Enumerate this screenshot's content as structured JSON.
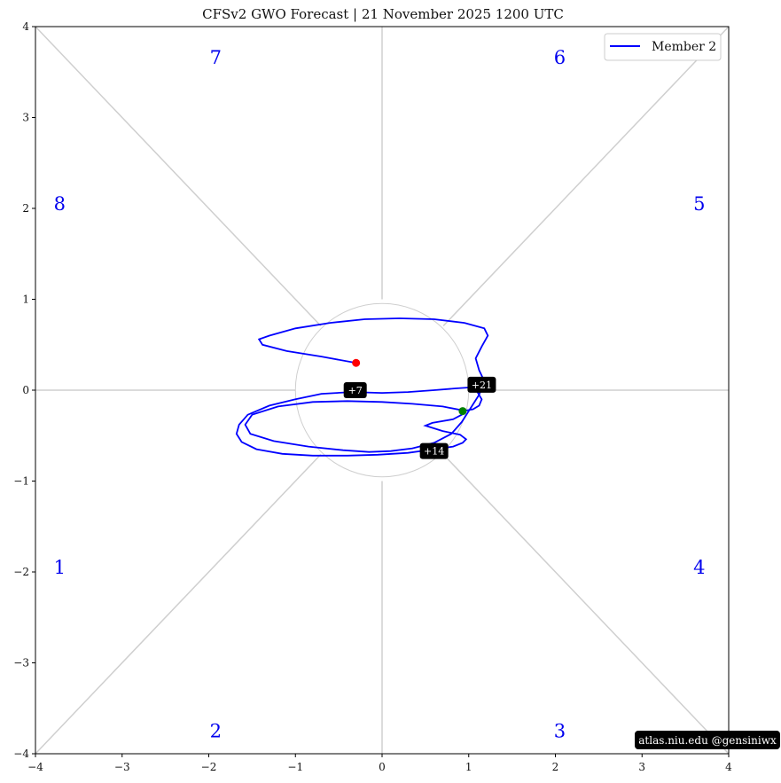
{
  "chart_data": {
    "type": "line",
    "title": "CFSv2 GWO Forecast   |   21  November  2025 1200 UTC",
    "xlim": [
      -4,
      4
    ],
    "ylim": [
      -4,
      4
    ],
    "x_ticks": [
      -4,
      -3,
      -2,
      -1,
      0,
      1,
      2,
      3,
      4
    ],
    "y_ticks": [
      -4,
      -3,
      -2,
      -1,
      0,
      1,
      2,
      3,
      4
    ],
    "x_tick_labels": [
      "−4",
      "−3",
      "−2",
      "−1",
      "0",
      "1",
      "2",
      "3",
      "4"
    ],
    "y_tick_labels": [
      "−4",
      "−3",
      "−2",
      "−1",
      "0",
      "1",
      "2",
      "3",
      "4"
    ],
    "unit_circle_radius": 1,
    "phase_labels": [
      {
        "label": "1",
        "x": -3.72,
        "y": -1.95
      },
      {
        "label": "2",
        "x": -1.92,
        "y": -3.75
      },
      {
        "label": "3",
        "x": 2.05,
        "y": -3.75
      },
      {
        "label": "4",
        "x": 3.66,
        "y": -1.95
      },
      {
        "label": "5",
        "x": 3.66,
        "y": 2.05
      },
      {
        "label": "6",
        "x": 2.05,
        "y": 3.66
      },
      {
        "label": "7",
        "x": -1.92,
        "y": 3.66
      },
      {
        "label": "8",
        "x": -3.72,
        "y": 2.05
      }
    ],
    "legend": {
      "position": "top-right",
      "entries": [
        "Member 2"
      ]
    },
    "series": [
      {
        "name": "Member 2",
        "color": "#0000ff",
        "x": [
          0.93,
          1.05,
          1.12,
          1.15,
          1.1,
          1.08,
          1.02,
          0.85,
          0.6,
          0.3,
          0.0,
          -0.35,
          -0.7,
          -1.0,
          -1.3,
          -1.55,
          -1.65,
          -1.68,
          -1.62,
          -1.45,
          -1.15,
          -0.8,
          -0.4,
          -0.05,
          0.3,
          0.6,
          0.82,
          0.93,
          0.97,
          0.9,
          0.7,
          0.5,
          0.58,
          0.82,
          0.94,
          0.92,
          0.7,
          0.35,
          0.0,
          -0.4,
          -0.8,
          -1.2,
          -1.5,
          -1.58,
          -1.52,
          -1.25,
          -0.85,
          -0.45,
          -0.15,
          0.1,
          0.35,
          0.6,
          0.8,
          0.92,
          1.02,
          1.12,
          1.18,
          1.12,
          1.08,
          1.15,
          1.22,
          1.18,
          0.95,
          0.6,
          0.2,
          -0.2,
          -0.6,
          -1.0,
          -1.3,
          -1.42,
          -1.38,
          -1.1,
          -0.7,
          -0.3
        ],
        "y": [
          -0.23,
          -0.21,
          -0.17,
          -0.1,
          -0.02,
          0.01,
          0.03,
          0.02,
          0.0,
          -0.02,
          -0.03,
          -0.02,
          -0.04,
          -0.1,
          -0.17,
          -0.27,
          -0.38,
          -0.48,
          -0.57,
          -0.65,
          -0.7,
          -0.72,
          -0.72,
          -0.71,
          -0.69,
          -0.65,
          -0.62,
          -0.58,
          -0.54,
          -0.49,
          -0.45,
          -0.39,
          -0.36,
          -0.32,
          -0.26,
          -0.22,
          -0.18,
          -0.15,
          -0.13,
          -0.12,
          -0.13,
          -0.18,
          -0.27,
          -0.38,
          -0.48,
          -0.56,
          -0.62,
          -0.66,
          -0.68,
          -0.67,
          -0.64,
          -0.58,
          -0.48,
          -0.35,
          -0.2,
          -0.05,
          0.1,
          0.22,
          0.35,
          0.48,
          0.6,
          0.68,
          0.74,
          0.78,
          0.79,
          0.78,
          0.74,
          0.68,
          0.6,
          0.56,
          0.5,
          0.43,
          0.37,
          0.3
        ],
        "start_marker": {
          "x": 0.93,
          "y": -0.23,
          "color": "#008000"
        },
        "end_marker": {
          "x": -0.3,
          "y": 0.3,
          "color": "#ff0000"
        },
        "lead_labels": [
          {
            "label": "+7",
            "x": -0.31,
            "y": 0.0
          },
          {
            "label": "+14",
            "x": 0.6,
            "y": -0.67
          },
          {
            "label": "+21",
            "x": 1.15,
            "y": 0.06
          }
        ]
      }
    ]
  },
  "watermark": "atlas.niu.edu  @gensiniwx",
  "colors": {
    "series": "#0000ff",
    "phase_label": "#0000ee",
    "guide_lines": "#cfcfcf",
    "start_marker": "#008000",
    "end_marker": "#ff0000",
    "label_box": "#000000"
  }
}
